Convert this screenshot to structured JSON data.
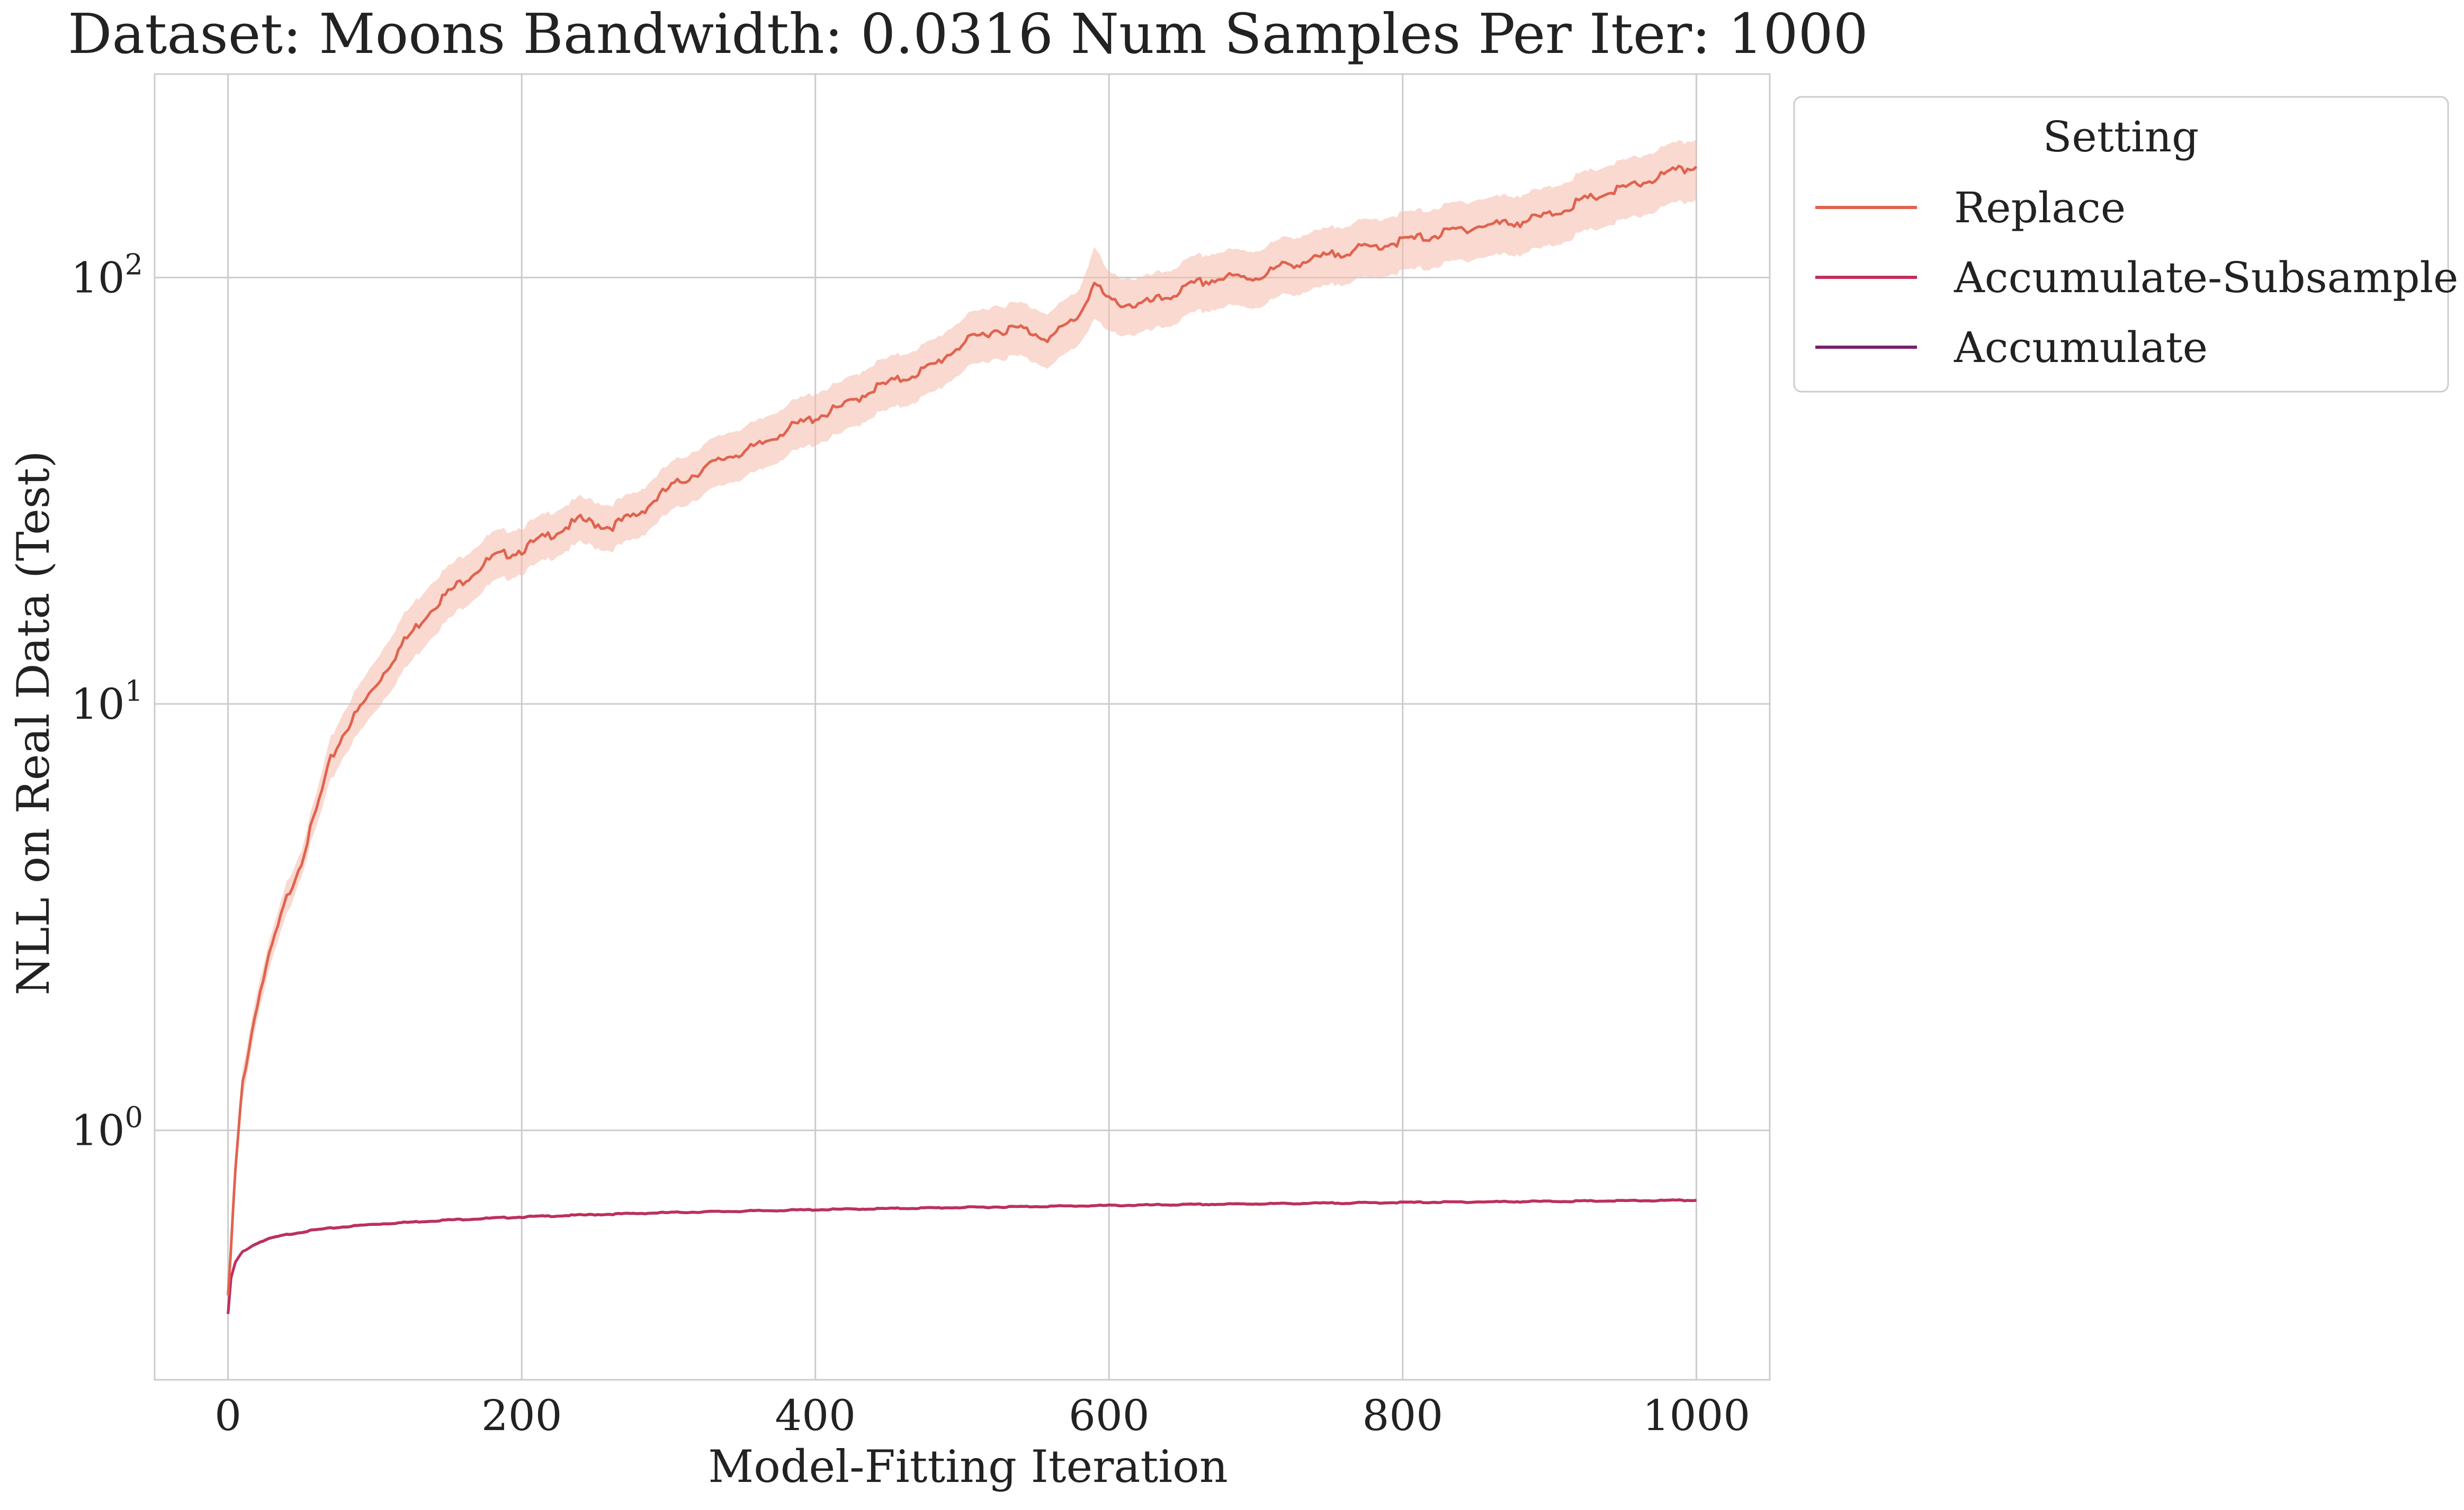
{
  "chart_data": {
    "type": "line",
    "title": "Dataset: Moons Bandwidth: 0.0316 Num Samples Per Iter: 1000",
    "xlabel": "Model-Fitting Iteration",
    "ylabel": "NLL on Real Data (Test)",
    "xlim": [
      -50,
      1050
    ],
    "ylim": [
      0.26,
      300
    ],
    "yscale": "log",
    "grid": true,
    "x_ticks": [
      0,
      200,
      400,
      600,
      800,
      1000
    ],
    "x_tick_labels": [
      "0",
      "200",
      "400",
      "600",
      "800",
      "1000"
    ],
    "y_ticks": [
      1,
      10,
      100
    ],
    "y_tick_labels": [
      {
        "base": "10",
        "exp": "0"
      },
      {
        "base": "10",
        "exp": "1"
      },
      {
        "base": "10",
        "exp": "2"
      }
    ],
    "legend": {
      "title": "Setting",
      "placement": "outside-top-right"
    },
    "series": [
      {
        "name": "Replace",
        "color": "#e0634f",
        "band_color": "#f4b9aa",
        "x": [
          0,
          5,
          10,
          20,
          30,
          40,
          50,
          60,
          70,
          80,
          100,
          120,
          140,
          160,
          180,
          200,
          220,
          240,
          260,
          280,
          300,
          320,
          340,
          360,
          380,
          400,
          420,
          440,
          460,
          480,
          500,
          520,
          540,
          560,
          580,
          590,
          600,
          620,
          640,
          660,
          680,
          700,
          720,
          740,
          760,
          780,
          800,
          820,
          840,
          860,
          880,
          900,
          920,
          940,
          960,
          980,
          1000
        ],
        "values": [
          0.4,
          0.8,
          1.3,
          2.0,
          2.7,
          3.5,
          4.3,
          5.6,
          7.4,
          8.7,
          11.0,
          14.0,
          17.0,
          19.5,
          22.0,
          23.0,
          25.0,
          27.0,
          26.0,
          28.0,
          32.0,
          35.0,
          38.0,
          40.0,
          44.0,
          47.0,
          50.0,
          55.0,
          58.0,
          62.0,
          70.0,
          75.0,
          76.0,
          72.0,
          82.0,
          97.0,
          88.0,
          86.0,
          90.0,
          97.0,
          100.0,
          100.0,
          107.0,
          110.0,
          115.0,
          118.0,
          122.0,
          125.0,
          130.0,
          133.0,
          135.0,
          140.0,
          150.0,
          158.0,
          165.0,
          175.0,
          182.0
        ],
        "lower": [
          0.38,
          0.74,
          1.2,
          1.85,
          2.5,
          3.2,
          4.0,
          5.1,
          6.6,
          7.7,
          9.6,
          12.0,
          14.6,
          16.9,
          19.2,
          20.3,
          22.0,
          23.8,
          22.9,
          24.6,
          28.0,
          30.5,
          33.0,
          34.8,
          38.2,
          40.8,
          43.3,
          47.6,
          50.1,
          53.5,
          60.3,
          64.5,
          65.3,
          61.7,
          70.2,
          80.0,
          74.0,
          73.6,
          76.9,
          82.9,
          85.4,
          85.2,
          91.0,
          93.4,
          97.6,
          100.0,
          103.3,
          105.7,
          109.8,
          112.2,
          113.8,
          118.0,
          126.2,
          132.8,
          138.6,
          146.9,
          152.5
        ],
        "upper": [
          0.42,
          0.86,
          1.4,
          2.15,
          2.9,
          3.8,
          4.6,
          6.1,
          8.3,
          9.8,
          12.6,
          16.2,
          19.6,
          22.3,
          25.1,
          26.0,
          28.2,
          30.4,
          29.3,
          31.6,
          36.3,
          39.8,
          43.3,
          45.7,
          50.2,
          53.7,
          57.1,
          62.9,
          66.3,
          70.9,
          80.1,
          85.9,
          87.0,
          82.6,
          94.2,
          118.0,
          101.6,
          99.1,
          103.8,
          112.2,
          115.4,
          115.7,
          123.8,
          127.3,
          133.1,
          136.6,
          141.3,
          144.8,
          150.5,
          154.0,
          156.3,
          162.1,
          173.9,
          183.2,
          191.4,
          203.1,
          211.2
        ]
      },
      {
        "name": "Accumulate-Subsample",
        "color": "#c0305a",
        "x": [
          0,
          2,
          5,
          10,
          20,
          30,
          40,
          50,
          60,
          80,
          100,
          150,
          200,
          250,
          300,
          400,
          500,
          600,
          700,
          800,
          900,
          1000
        ],
        "values": [
          0.37,
          0.45,
          0.49,
          0.52,
          0.545,
          0.56,
          0.57,
          0.578,
          0.585,
          0.595,
          0.603,
          0.617,
          0.627,
          0.635,
          0.642,
          0.652,
          0.66,
          0.667,
          0.673,
          0.678,
          0.682,
          0.686
        ]
      },
      {
        "name": "Accumulate",
        "color": "#7a2068",
        "x": [
          0,
          2,
          5,
          10,
          20,
          30,
          40,
          50,
          60,
          80,
          100,
          150,
          200,
          250,
          300,
          400,
          500,
          600,
          700,
          800,
          900,
          1000
        ],
        "values": [
          0.37,
          0.45,
          0.49,
          0.52,
          0.544,
          0.559,
          0.569,
          0.577,
          0.584,
          0.594,
          0.602,
          0.616,
          0.626,
          0.634,
          0.641,
          0.651,
          0.659,
          0.666,
          0.672,
          0.677,
          0.681,
          0.685
        ]
      }
    ]
  }
}
